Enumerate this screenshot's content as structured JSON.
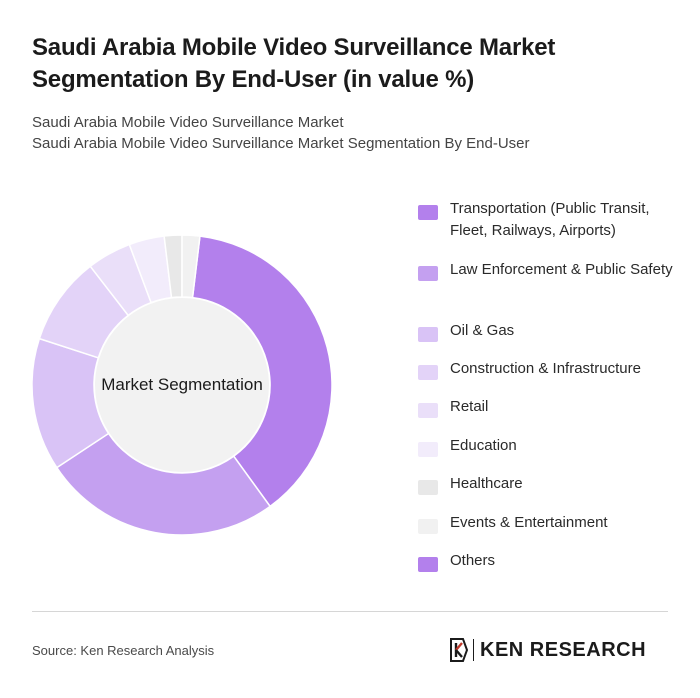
{
  "chart_data": {
    "type": "pie",
    "title": "Saudi Arabia Mobile Video Surveillance Market Segmentation By End-User (in value %)",
    "subtitle_lines": [
      "Saudi Arabia Mobile Video Surveillance Market",
      "Saudi Arabia Mobile Video Surveillance Market Segmentation By End-User"
    ],
    "center_label": "Market Segmentation",
    "legend_position": "right",
    "categories": [
      "Transportation (Public Transit, Fleet, Railways, Airports)",
      "Law Enforcement & Public Safety",
      "Oil & Gas",
      "Construction & Infrastructure",
      "Retail",
      "Education",
      "Healthcare",
      "Events & Entertainment",
      "Others"
    ],
    "values": [
      40,
      27,
      15,
      10,
      5,
      4,
      2,
      2,
      0
    ],
    "colors": [
      "#b380ec",
      "#c4a0f0",
      "#d9c3f6",
      "#e3d3f8",
      "#eadff9",
      "#f2ecfb",
      "#e8e8e8",
      "#f1f1f1",
      "#b380ec"
    ]
  },
  "source": "Source: Ken Research Analysis",
  "logo": {
    "text": "KEN RESEARCH",
    "icon": "ken-research-k-icon"
  }
}
